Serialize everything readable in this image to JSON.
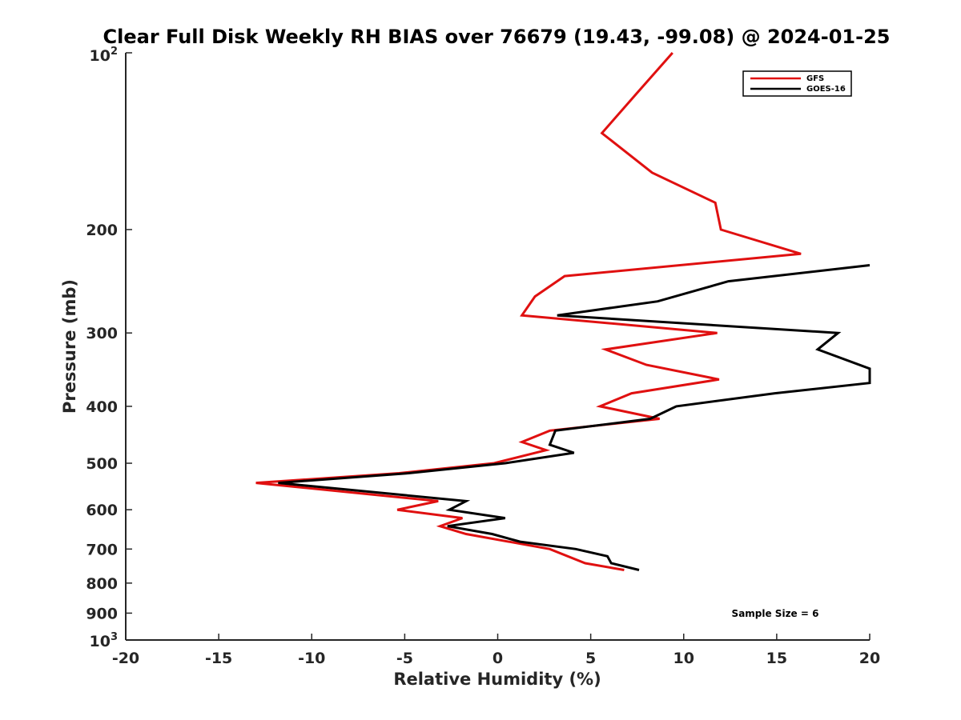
{
  "chart_data": {
    "type": "line",
    "title": "Clear Full Disk Weekly RH BIAS over 76679 (19.43, -99.08) @ 2024-01-25",
    "xlabel": "Relative Humidity (%)",
    "ylabel": "Pressure (mb)",
    "xlim": [
      -20,
      20
    ],
    "ylim": [
      100,
      1000
    ],
    "yscale": "log",
    "y_reversed": true,
    "grid": false,
    "x_ticks": [
      -20,
      -15,
      -10,
      -5,
      0,
      5,
      10,
      15,
      20
    ],
    "x_tick_labels": [
      "-20",
      "-15",
      "-10",
      "-5",
      "0",
      "5",
      "10",
      "15",
      "20"
    ],
    "y_ticks": [
      200,
      300,
      400,
      500,
      600,
      700,
      800,
      900
    ],
    "y_tick_labels": [
      "200",
      "300",
      "400",
      "500",
      "600",
      "700",
      "800",
      "900"
    ],
    "y_top_label": {
      "base": "10",
      "exp": "2"
    },
    "y_bottom_label": {
      "base": "10",
      "exp": "3"
    },
    "legend_position": "top-right",
    "series": [
      {
        "name": "GFS",
        "color": "#e01010",
        "points": [
          {
            "x": 9.4,
            "y": 100
          },
          {
            "x": 7.5,
            "y": 117
          },
          {
            "x": 5.6,
            "y": 137
          },
          {
            "x": 8.3,
            "y": 160
          },
          {
            "x": 11.7,
            "y": 180
          },
          {
            "x": 12.0,
            "y": 200
          },
          {
            "x": 16.3,
            "y": 220
          },
          {
            "x": 3.6,
            "y": 240
          },
          {
            "x": 2.0,
            "y": 260
          },
          {
            "x": 1.3,
            "y": 280
          },
          {
            "x": 11.8,
            "y": 300
          },
          {
            "x": 5.8,
            "y": 320
          },
          {
            "x": 8.0,
            "y": 340
          },
          {
            "x": 11.9,
            "y": 360
          },
          {
            "x": 7.2,
            "y": 380
          },
          {
            "x": 5.5,
            "y": 400
          },
          {
            "x": 8.7,
            "y": 420
          },
          {
            "x": 2.8,
            "y": 440
          },
          {
            "x": 1.3,
            "y": 460
          },
          {
            "x": 2.6,
            "y": 475
          },
          {
            "x": -0.2,
            "y": 500
          },
          {
            "x": -5.3,
            "y": 520
          },
          {
            "x": -13.0,
            "y": 540
          },
          {
            "x": -3.2,
            "y": 580
          },
          {
            "x": -5.4,
            "y": 600
          },
          {
            "x": -1.9,
            "y": 620
          },
          {
            "x": -3.1,
            "y": 640
          },
          {
            "x": -1.7,
            "y": 660
          },
          {
            "x": 2.8,
            "y": 700
          },
          {
            "x": 4.7,
            "y": 740
          },
          {
            "x": 6.8,
            "y": 760
          }
        ]
      },
      {
        "name": "GOES-16",
        "color": "#000000",
        "points": [
          {
            "x": 20.0,
            "y": 230
          },
          {
            "x": 12.4,
            "y": 245
          },
          {
            "x": 8.6,
            "y": 265
          },
          {
            "x": 3.2,
            "y": 280
          },
          {
            "x": 18.3,
            "y": 300
          },
          {
            "x": 17.2,
            "y": 320
          },
          {
            "x": 20.0,
            "y": 345
          },
          {
            "x": 20.0,
            "y": 365
          },
          {
            "x": 14.9,
            "y": 380
          },
          {
            "x": 9.6,
            "y": 400
          },
          {
            "x": 8.2,
            "y": 420
          },
          {
            "x": 3.1,
            "y": 440
          },
          {
            "x": 2.8,
            "y": 465
          },
          {
            "x": 4.1,
            "y": 480
          },
          {
            "x": 0.4,
            "y": 500
          },
          {
            "x": -4.8,
            "y": 520
          },
          {
            "x": -11.8,
            "y": 540
          },
          {
            "x": -1.7,
            "y": 580
          },
          {
            "x": -2.6,
            "y": 600
          },
          {
            "x": 0.4,
            "y": 620
          },
          {
            "x": -2.7,
            "y": 640
          },
          {
            "x": -0.3,
            "y": 660
          },
          {
            "x": 1.2,
            "y": 680
          },
          {
            "x": 4.2,
            "y": 700
          },
          {
            "x": 5.9,
            "y": 720
          },
          {
            "x": 6.1,
            "y": 740
          },
          {
            "x": 7.6,
            "y": 760
          }
        ]
      }
    ],
    "annotation": "Sample Size = 6"
  }
}
